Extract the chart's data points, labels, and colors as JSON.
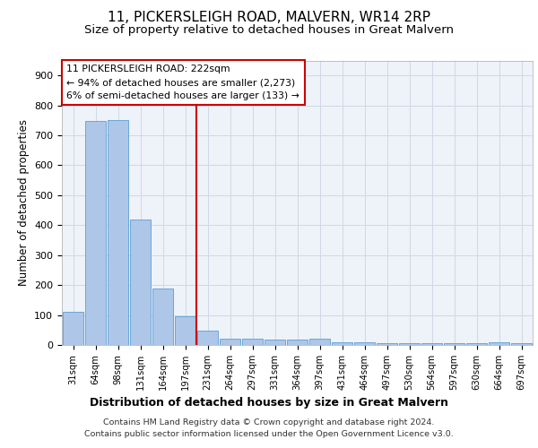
{
  "title": "11, PICKERSLEIGH ROAD, MALVERN, WR14 2RP",
  "subtitle": "Size of property relative to detached houses in Great Malvern",
  "xlabel": "Distribution of detached houses by size in Great Malvern",
  "ylabel": "Number of detached properties",
  "categories": [
    "31sqm",
    "64sqm",
    "98sqm",
    "131sqm",
    "164sqm",
    "197sqm",
    "231sqm",
    "264sqm",
    "297sqm",
    "331sqm",
    "364sqm",
    "397sqm",
    "431sqm",
    "464sqm",
    "497sqm",
    "530sqm",
    "564sqm",
    "597sqm",
    "630sqm",
    "664sqm",
    "697sqm"
  ],
  "values": [
    110,
    748,
    750,
    418,
    188,
    97,
    47,
    20,
    22,
    18,
    18,
    20,
    10,
    8,
    7,
    5,
    5,
    5,
    5,
    8,
    5
  ],
  "bar_color": "#aec6e8",
  "bar_edge_color": "#5a9fd4",
  "grid_color": "#d0d8e8",
  "background_color": "#eef2f9",
  "vline_x_index": 6,
  "vline_color": "#cc0000",
  "annotation_line1": "11 PICKERSLEIGH ROAD: 222sqm",
  "annotation_line2": "← 94% of detached houses are smaller (2,273)",
  "annotation_line3": "6% of semi-detached houses are larger (133) →",
  "annotation_box_color": "#cc0000",
  "ylim": [
    0,
    950
  ],
  "yticks": [
    0,
    100,
    200,
    300,
    400,
    500,
    600,
    700,
    800,
    900
  ],
  "title_fontsize": 11,
  "subtitle_fontsize": 9.5,
  "footer_line1": "Contains HM Land Registry data © Crown copyright and database right 2024.",
  "footer_line2": "Contains public sector information licensed under the Open Government Licence v3.0."
}
